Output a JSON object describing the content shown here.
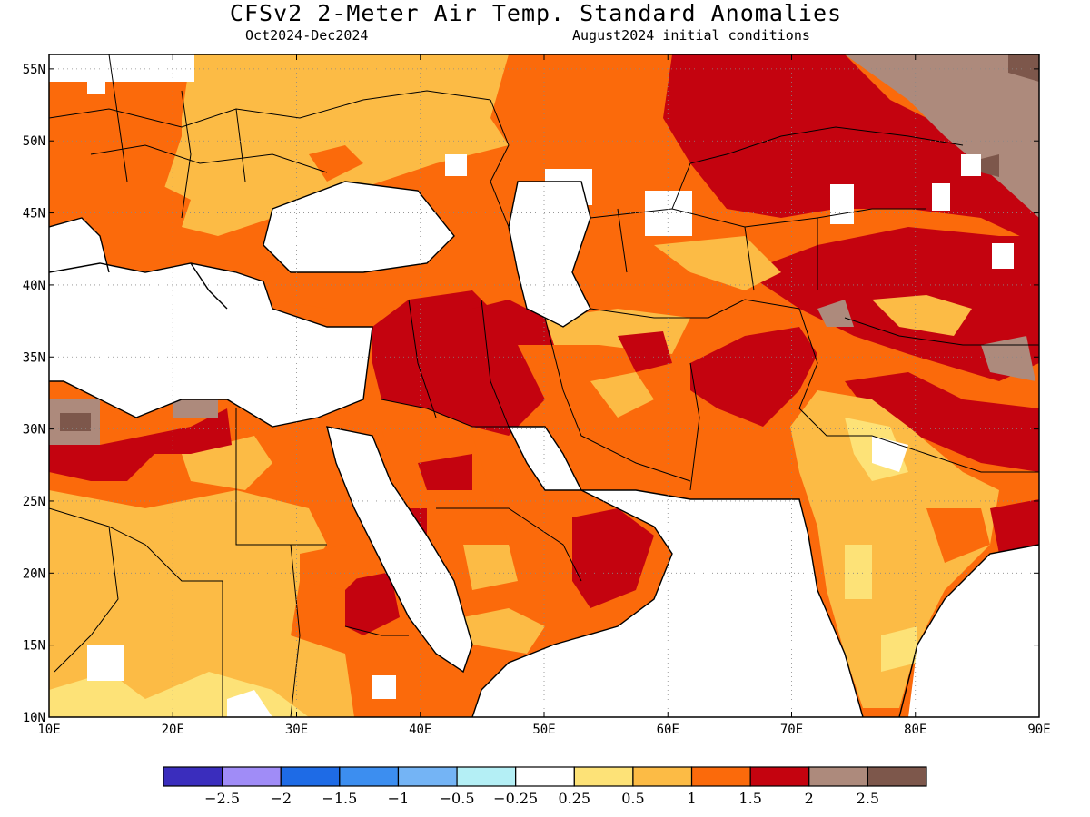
{
  "header": {
    "title": "CFSv2 2-Meter Air Temp. Standard Anomalies",
    "period": "Oct2024-Dec2024",
    "initial_conditions": "August2024 initial conditions"
  },
  "map": {
    "lon_range": [
      10,
      90
    ],
    "lat_range": [
      10,
      56
    ],
    "lon_ticks": [
      {
        "value": 10,
        "label": "10E"
      },
      {
        "value": 20,
        "label": "20E"
      },
      {
        "value": 30,
        "label": "30E"
      },
      {
        "value": 40,
        "label": "40E"
      },
      {
        "value": 50,
        "label": "50E"
      },
      {
        "value": 60,
        "label": "60E"
      },
      {
        "value": 70,
        "label": "70E"
      },
      {
        "value": 80,
        "label": "80E"
      },
      {
        "value": 90,
        "label": "90E"
      }
    ],
    "lat_ticks": [
      {
        "value": 10,
        "label": "10N"
      },
      {
        "value": 15,
        "label": "15N"
      },
      {
        "value": 20,
        "label": "20N"
      },
      {
        "value": 25,
        "label": "25N"
      },
      {
        "value": 30,
        "label": "30N"
      },
      {
        "value": 35,
        "label": "35N"
      },
      {
        "value": 40,
        "label": "40N"
      },
      {
        "value": 45,
        "label": "45N"
      },
      {
        "value": 50,
        "label": "50N"
      },
      {
        "value": 55,
        "label": "55N"
      }
    ]
  },
  "colorbar": {
    "colors": [
      "#3a2dbd",
      "#a08cf7",
      "#1e6be6",
      "#3c8ef0",
      "#74b4f5",
      "#b4eff5",
      "#ffffff",
      "#fde277",
      "#fcbb45",
      "#fb6a0b",
      "#c4030f",
      "#ad8a7c",
      "#7d574b"
    ],
    "labels": [
      "−2.5",
      "−2",
      "−1.5",
      "−1",
      "−0.5",
      "−0.25",
      "0.25",
      "0.5",
      "1",
      "1.5",
      "2",
      "2.5"
    ]
  }
}
